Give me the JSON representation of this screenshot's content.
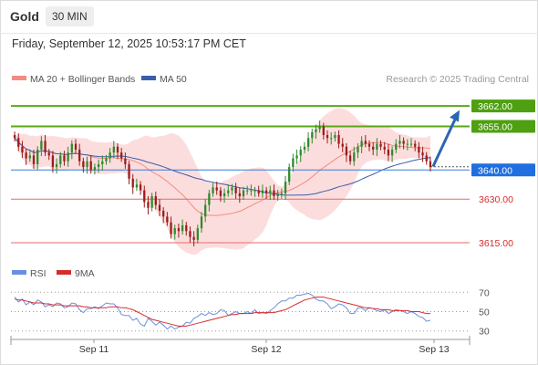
{
  "header": {
    "symbol": "Gold",
    "timeframe": "30 MIN",
    "timestamp": "Friday, September 12, 2025 10:53:17 PM CET"
  },
  "legend": {
    "ma20_bb": "MA 20 + Bollinger Bands",
    "ma50": "MA 50",
    "rsi": "RSI",
    "rsi_ma": "9MA"
  },
  "watermark": "Research © 2025 Trading Central",
  "colors": {
    "up": "#2e8b2e",
    "down": "#9c1c1c",
    "bollinger": "#fbd7d7",
    "ma20": "#f28b82",
    "ma50": "#3a5fa8",
    "resistance": "#5aa814",
    "support": "#e46a6a",
    "pivot": "#3a7bd5",
    "projection": "#2b66b5",
    "rsi": "#6a8fe0",
    "rsi_ma": "#d62c2c"
  },
  "chart_data": [
    {
      "type": "candlestick",
      "title": "",
      "x_ticks": [
        "Sep 11",
        "Sep 12",
        "Sep 13"
      ],
      "ylim": [
        3610,
        3668
      ],
      "levels": [
        {
          "value": 3662.0,
          "label": "3662.00",
          "kind": "resistance"
        },
        {
          "value": 3655.0,
          "label": "3655.00",
          "kind": "resistance"
        },
        {
          "value": 3640.0,
          "label": "3640.00",
          "kind": "pivot"
        },
        {
          "value": 3630.0,
          "label": "3630.00",
          "kind": "support"
        },
        {
          "value": 3615.0,
          "label": "3615.00",
          "kind": "support"
        }
      ],
      "last_price": 3641.12,
      "projection": {
        "from": 3641.2,
        "to": 3660.6
      },
      "series": [
        {
          "name": "Close",
          "values": [
            3651,
            3648,
            3646,
            3644,
            3645,
            3642,
            3647,
            3650,
            3646,
            3645,
            3641,
            3642,
            3645,
            3643,
            3646,
            3649,
            3647,
            3643,
            3641,
            3643,
            3640,
            3641,
            3642,
            3643,
            3644,
            3646,
            3648,
            3646,
            3644,
            3642,
            3637,
            3634,
            3635,
            3633,
            3629,
            3627,
            3631,
            3628,
            3626,
            3624,
            3622,
            3618,
            3620,
            3619,
            3621,
            3619,
            3617,
            3616,
            3620,
            3624,
            3628,
            3632,
            3634,
            3633,
            3631,
            3632,
            3633,
            3634,
            3632,
            3631,
            3633,
            3633,
            3633,
            3633,
            3632,
            3633,
            3632,
            3633,
            3631,
            3632,
            3632,
            3636,
            3641,
            3644,
            3645,
            3647,
            3648,
            3651,
            3653,
            3654,
            3655,
            3652,
            3651,
            3651,
            3652,
            3649,
            3648,
            3645,
            3643,
            3646,
            3648,
            3650,
            3649,
            3648,
            3647,
            3649,
            3648,
            3647,
            3645,
            3647,
            3649,
            3650,
            3649,
            3649,
            3649,
            3648,
            3646,
            3645,
            3643,
            3641
          ]
        }
      ]
    },
    {
      "type": "line",
      "title": "",
      "y_ticks": [
        70,
        50,
        30
      ],
      "ylim": [
        25,
        75
      ],
      "series": [
        {
          "name": "RSI",
          "values": [
            65,
            60,
            63,
            57,
            60,
            57,
            62,
            60,
            55,
            57,
            55,
            59,
            58,
            54,
            55,
            59,
            58,
            52,
            49,
            53,
            53,
            55,
            53,
            56,
            59,
            58,
            58,
            54,
            47,
            46,
            46,
            41,
            43,
            37,
            35,
            43,
            40,
            36,
            39,
            36,
            32,
            35,
            32,
            34,
            35,
            39,
            38,
            43,
            45,
            48,
            46,
            49,
            47,
            48,
            52,
            51,
            46,
            48,
            50,
            48,
            48,
            50,
            48,
            52,
            48,
            49,
            48,
            51,
            54,
            58,
            61,
            61,
            64,
            64,
            67,
            67,
            68,
            69,
            67,
            63,
            61,
            61,
            58,
            53,
            55,
            58,
            57,
            54,
            48,
            48,
            54,
            54,
            51,
            54,
            53,
            51,
            50,
            52,
            48,
            50,
            52,
            51,
            50,
            48,
            50,
            48,
            45,
            44,
            40,
            41
          ]
        },
        {
          "name": "9MA",
          "values": [
            63,
            62,
            62,
            61,
            60,
            59,
            59,
            59,
            58,
            58,
            57,
            57,
            57,
            56,
            56,
            56,
            56,
            56,
            55,
            55,
            54,
            54,
            54,
            54,
            54,
            55,
            55,
            55,
            54,
            54,
            53,
            52,
            50,
            48,
            46,
            44,
            42,
            41,
            40,
            39,
            38,
            37,
            36,
            35,
            35,
            35,
            36,
            37,
            38,
            39,
            40,
            41,
            42,
            43,
            44,
            45,
            46,
            47,
            47,
            48,
            48,
            48,
            48,
            49,
            49,
            49,
            49,
            49,
            49,
            50,
            51,
            52,
            54,
            56,
            58,
            60,
            62,
            63,
            64,
            65,
            65,
            65,
            64,
            63,
            62,
            61,
            60,
            59,
            58,
            57,
            56,
            55,
            54,
            54,
            53,
            53,
            52,
            52,
            52,
            51,
            51,
            51,
            51,
            51,
            50,
            50,
            50,
            49,
            48,
            48
          ]
        }
      ]
    }
  ]
}
